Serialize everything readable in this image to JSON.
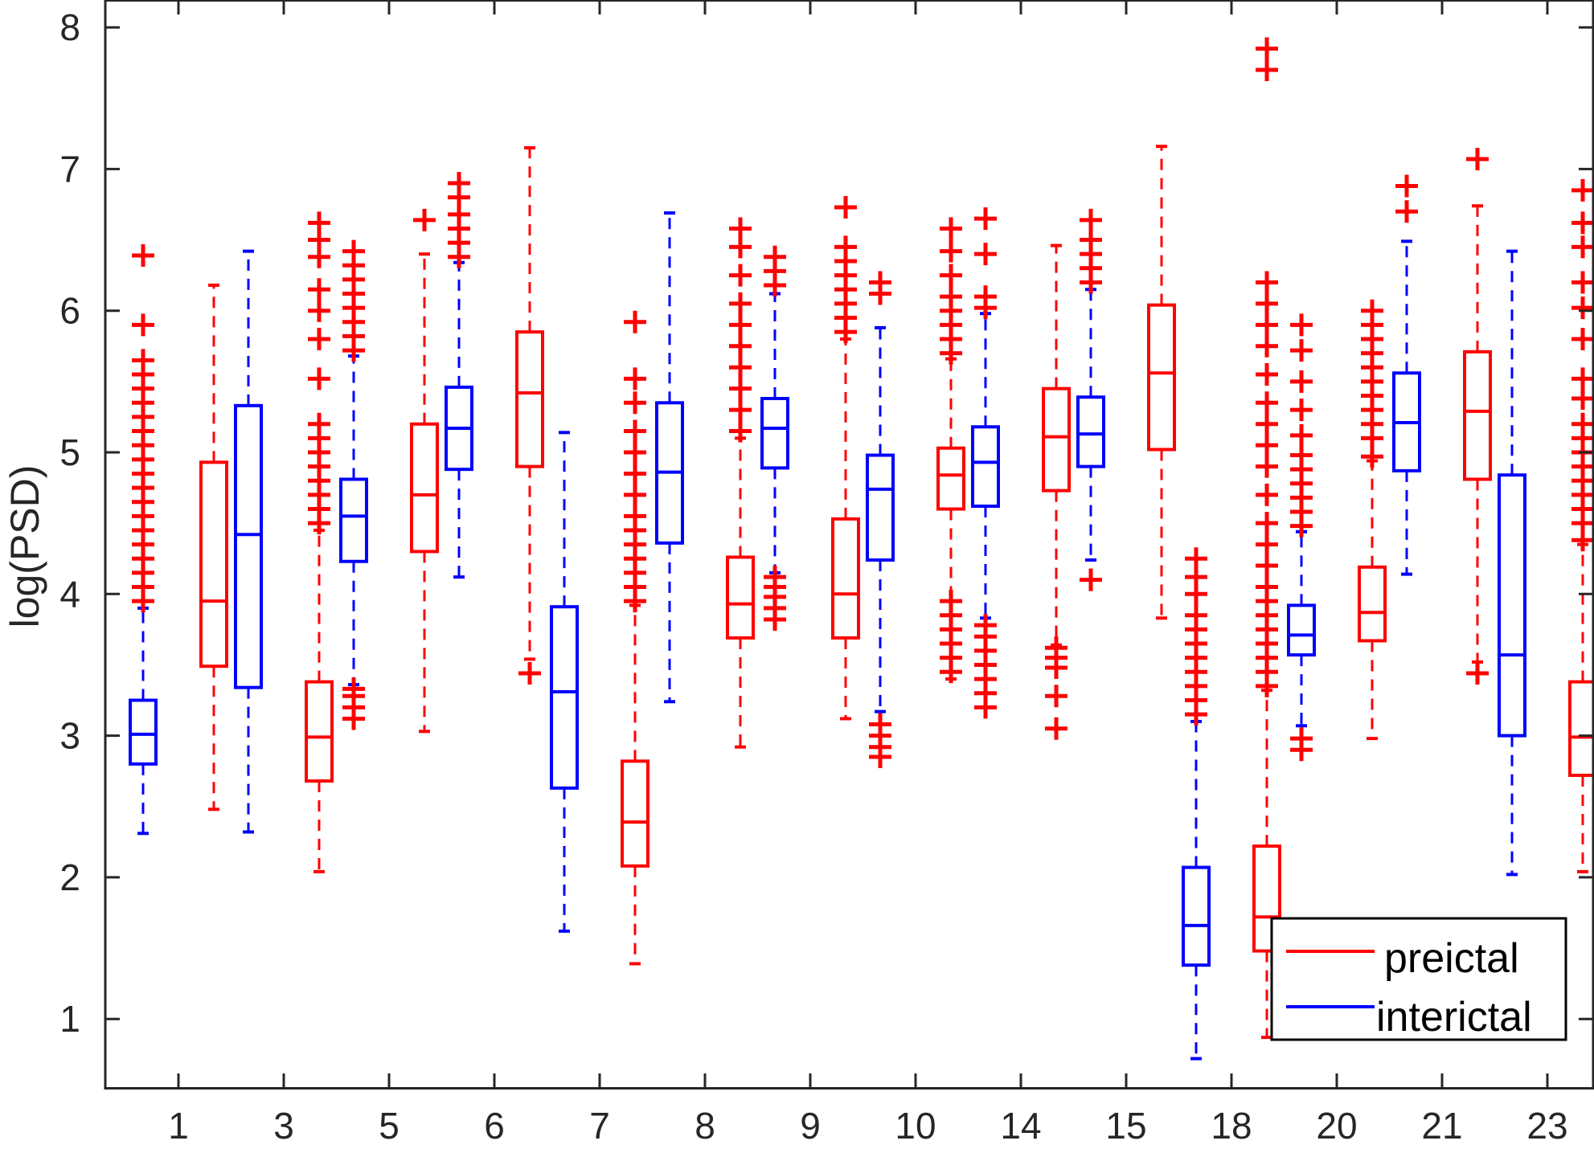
{
  "chart_data": {
    "type": "box",
    "title": "",
    "xlabel": "",
    "ylabel": "log(PSD)",
    "ylim": [
      0.5,
      8.2
    ],
    "yticks": [
      1,
      2,
      3,
      4,
      5,
      6,
      7,
      8
    ],
    "grid": false,
    "legend_position": "bottom-right",
    "categories": [
      "1",
      "3",
      "5",
      "6",
      "7",
      "8",
      "9",
      "10",
      "14",
      "15",
      "18",
      "20",
      "21",
      "23"
    ],
    "series": [
      {
        "name": "preictal",
        "color": "#ff0000",
        "boxes": [
          {
            "whisker_low": 2.48,
            "q1": 3.49,
            "median": 3.95,
            "q3": 4.93,
            "whisker_high": 6.18,
            "outliers": []
          },
          {
            "whisker_low": 2.04,
            "q1": 2.68,
            "median": 2.99,
            "q3": 3.38,
            "whisker_high": 4.45,
            "outliers": [
              4.5,
              4.6,
              4.7,
              4.8,
              4.9,
              5.0,
              5.1,
              5.2,
              5.52,
              5.8,
              6.0,
              6.15,
              6.38,
              6.5,
              6.62
            ]
          },
          {
            "whisker_low": 3.03,
            "q1": 4.3,
            "median": 4.7,
            "q3": 5.2,
            "whisker_high": 6.4,
            "outliers": [
              6.64
            ]
          },
          {
            "whisker_low": 3.54,
            "q1": 4.9,
            "median": 5.42,
            "q3": 5.85,
            "whisker_high": 7.15,
            "outliers": [
              3.44
            ]
          },
          {
            "whisker_low": 1.39,
            "q1": 2.08,
            "median": 2.39,
            "q3": 2.82,
            "whisker_high": 3.92,
            "outliers": [
              3.95,
              4.05,
              4.15,
              4.25,
              4.35,
              4.45,
              4.55,
              4.7,
              4.85,
              5.0,
              5.15,
              5.35,
              5.52,
              5.92
            ]
          },
          {
            "whisker_low": 2.92,
            "q1": 3.69,
            "median": 3.93,
            "q3": 4.26,
            "whisker_high": 5.1,
            "outliers": [
              5.15,
              5.3,
              5.45,
              5.6,
              5.75,
              5.9,
              6.05,
              6.25,
              6.45,
              6.58
            ]
          },
          {
            "whisker_low": 3.12,
            "q1": 3.69,
            "median": 4.0,
            "q3": 4.53,
            "whisker_high": 5.8,
            "outliers": [
              5.85,
              5.95,
              6.05,
              6.15,
              6.25,
              6.35,
              6.45,
              6.73
            ]
          },
          {
            "whisker_low": 3.4,
            "q1": 4.6,
            "median": 4.84,
            "q3": 5.03,
            "whisker_high": 5.66,
            "outliers": [
              3.45,
              3.55,
              3.65,
              3.75,
              3.85,
              3.95,
              5.7,
              5.8,
              5.9,
              6.0,
              6.1,
              6.25,
              6.42,
              6.58
            ]
          },
          {
            "whisker_low": 3.64,
            "q1": 4.73,
            "median": 5.11,
            "q3": 5.45,
            "whisker_high": 6.46,
            "outliers": [
              3.05,
              3.28,
              3.48,
              3.55,
              3.62
            ]
          },
          {
            "whisker_low": 3.83,
            "q1": 5.02,
            "median": 5.56,
            "q3": 6.04,
            "whisker_high": 7.16,
            "outliers": []
          },
          {
            "whisker_low": 0.87,
            "q1": 1.48,
            "median": 1.72,
            "q3": 2.22,
            "whisker_high": 3.32,
            "outliers": [
              3.35,
              3.45,
              3.55,
              3.65,
              3.75,
              3.85,
              3.95,
              4.05,
              4.2,
              4.35,
              4.5,
              4.7,
              4.9,
              5.05,
              5.2,
              5.35,
              5.55,
              5.75,
              5.9,
              6.05,
              6.2,
              7.7,
              7.85
            ]
          },
          {
            "whisker_low": 2.98,
            "q1": 3.67,
            "median": 3.87,
            "q3": 4.19,
            "whisker_high": 4.94,
            "outliers": [
              4.97,
              5.1,
              5.2,
              5.3,
              5.4,
              5.5,
              5.6,
              5.7,
              5.8,
              5.9,
              6.0
            ]
          },
          {
            "whisker_low": 3.52,
            "q1": 4.81,
            "median": 5.29,
            "q3": 5.71,
            "whisker_high": 6.74,
            "outliers": [
              3.44,
              7.07
            ]
          },
          {
            "whisker_low": 2.04,
            "q1": 2.72,
            "median": 2.99,
            "q3": 3.38,
            "whisker_high": 4.35,
            "outliers": [
              4.38,
              4.5,
              4.6,
              4.7,
              4.8,
              4.9,
              5.0,
              5.1,
              5.2,
              5.38,
              5.52,
              5.8,
              6.02,
              6.2,
              6.45,
              6.62,
              6.85
            ]
          }
        ]
      },
      {
        "name": "interictal",
        "color": "#0000ff",
        "boxes": [
          {
            "whisker_low": 2.31,
            "q1": 2.8,
            "median": 3.01,
            "q3": 3.25,
            "whisker_high": 3.9,
            "outliers": [
              3.95,
              4.05,
              4.15,
              4.25,
              4.35,
              4.45,
              4.55,
              4.65,
              4.75,
              4.85,
              4.95,
              5.05,
              5.15,
              5.25,
              5.35,
              5.45,
              5.55,
              5.65,
              5.9,
              6.39
            ]
          },
          {
            "whisker_low": 2.32,
            "q1": 3.34,
            "median": 4.42,
            "q3": 5.33,
            "whisker_high": 6.42,
            "outliers": []
          },
          {
            "whisker_low": 3.36,
            "q1": 4.23,
            "median": 4.55,
            "q3": 4.81,
            "whisker_high": 5.68,
            "outliers": [
              3.12,
              3.2,
              3.28,
              3.33,
              5.72,
              5.82,
              5.92,
              6.02,
              6.12,
              6.22,
              6.32,
              6.42
            ]
          },
          {
            "whisker_low": 4.12,
            "q1": 4.88,
            "median": 5.17,
            "q3": 5.46,
            "whisker_high": 6.34,
            "outliers": [
              6.38,
              6.48,
              6.58,
              6.68,
              6.8,
              6.9
            ]
          },
          {
            "whisker_low": 1.62,
            "q1": 2.63,
            "median": 3.31,
            "q3": 3.91,
            "whisker_high": 5.14,
            "outliers": []
          },
          {
            "whisker_low": 3.24,
            "q1": 4.36,
            "median": 4.86,
            "q3": 5.35,
            "whisker_high": 6.69,
            "outliers": []
          },
          {
            "whisker_low": 4.15,
            "q1": 4.89,
            "median": 5.17,
            "q3": 5.38,
            "whisker_high": 6.12,
            "outliers": [
              3.82,
              3.9,
              3.98,
              4.05,
              4.12,
              6.18,
              6.28,
              6.38
            ]
          },
          {
            "whisker_low": 3.17,
            "q1": 4.24,
            "median": 4.74,
            "q3": 4.98,
            "whisker_high": 5.88,
            "outliers": [
              2.85,
              2.92,
              3.0,
              3.08,
              6.12,
              6.2
            ]
          },
          {
            "whisker_low": 3.83,
            "q1": 4.62,
            "median": 4.93,
            "q3": 5.18,
            "whisker_high": 5.98,
            "outliers": [
              3.2,
              3.3,
              3.4,
              3.5,
              3.6,
              3.7,
              3.78,
              6.02,
              6.1,
              6.4,
              6.65
            ]
          },
          {
            "whisker_low": 4.24,
            "q1": 4.9,
            "median": 5.13,
            "q3": 5.39,
            "whisker_high": 6.15,
            "outliers": [
              4.1,
              6.2,
              6.3,
              6.4,
              6.5,
              6.64
            ]
          },
          {
            "whisker_low": 0.72,
            "q1": 1.38,
            "median": 1.66,
            "q3": 2.07,
            "whisker_high": 3.1,
            "outliers": [
              3.15,
              3.25,
              3.35,
              3.45,
              3.55,
              3.65,
              3.75,
              3.85,
              4.0,
              4.12,
              4.25
            ]
          },
          {
            "whisker_low": 3.07,
            "q1": 3.57,
            "median": 3.71,
            "q3": 3.92,
            "whisker_high": 4.44,
            "outliers": [
              2.9,
              2.98,
              4.48,
              4.58,
              4.68,
              4.78,
              4.88,
              4.98,
              5.12,
              5.3,
              5.5,
              5.72,
              5.9
            ]
          },
          {
            "whisker_low": 4.14,
            "q1": 4.87,
            "median": 5.21,
            "q3": 5.56,
            "whisker_high": 6.49,
            "outliers": [
              6.7,
              6.88
            ]
          },
          {
            "whisker_low": 2.02,
            "q1": 3.0,
            "median": 3.57,
            "q3": 4.84,
            "whisker_high": 6.42,
            "outliers": []
          }
        ]
      }
    ]
  }
}
